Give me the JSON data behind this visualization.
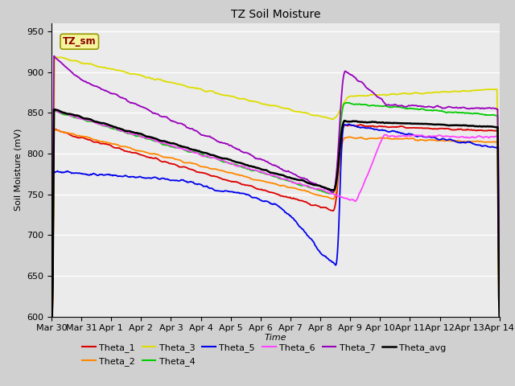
{
  "title": "TZ Soil Moisture",
  "xlabel": "Time",
  "ylabel": "Soil Moisture (mV)",
  "ylim": [
    600,
    960
  ],
  "yticks": [
    600,
    650,
    700,
    750,
    800,
    850,
    900,
    950
  ],
  "legend_label": "TZ_sm",
  "fig_bg": "#d0d0d0",
  "axes_bg": "#ebebeb",
  "colors": {
    "Theta_1": "#dd0000",
    "Theta_2": "#ff8800",
    "Theta_3": "#dddd00",
    "Theta_4": "#00cc00",
    "Theta_5": "#0000ee",
    "Theta_6": "#ff44ff",
    "Theta_7": "#9900bb",
    "Theta_avg": "#000000"
  },
  "tick_labels": [
    "Mar 30",
    "Mar 31",
    "Apr 1",
    "Apr 2",
    "Apr 3",
    "Apr 4",
    "Apr 5",
    "Apr 6",
    "Apr 7",
    "Apr 8",
    "Apr 9",
    "Apr 10",
    "Apr 11",
    "Apr 12",
    "Apr 13",
    "Apr 14"
  ],
  "event_day": 9.6
}
